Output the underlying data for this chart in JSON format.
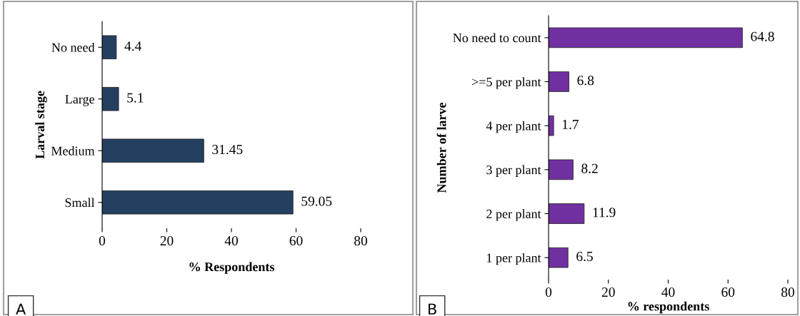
{
  "chart_data": [
    {
      "type": "bar",
      "orientation": "horizontal",
      "categories": [
        "No need",
        "Large",
        "Medium",
        "Small"
      ],
      "values": [
        4.4,
        5.1,
        31.45,
        59.05
      ],
      "color": "#243f60",
      "xlim": [
        0,
        80
      ],
      "xticks": [
        0,
        20,
        40,
        60,
        80
      ],
      "xlabel": "% Respondents",
      "ylabel": "Larval stage",
      "data_labels": true,
      "grid": false,
      "annotations": [
        "A"
      ]
    },
    {
      "type": "bar",
      "orientation": "horizontal",
      "categories": [
        "No need to count",
        ">=5 per plant",
        "4 per plant",
        "3 per plant",
        "2 per plant",
        "1 per plant"
      ],
      "values": [
        64.8,
        6.8,
        1.7,
        8.2,
        11.9,
        6.5
      ],
      "color": "#7030a0",
      "xlim": [
        0,
        80
      ],
      "xticks": [
        0,
        20,
        40,
        60,
        80
      ],
      "xlabel": "% respondents",
      "ylabel": "Number of larve",
      "data_labels": true,
      "grid": false,
      "annotations": [
        "B"
      ]
    }
  ]
}
